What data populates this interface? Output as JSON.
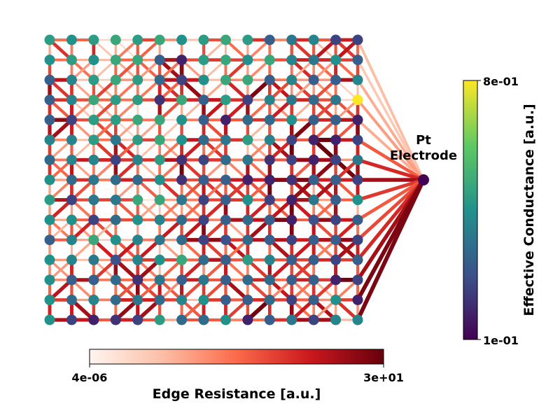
{
  "chart_data": {
    "type": "network-graph",
    "electrode_label": "Pt\nElectrode",
    "grid": {
      "rows": 15,
      "cols": 15
    },
    "edge_colorbar": {
      "label": "Edge Resistance [a.u.]",
      "min_label": "4e-06",
      "max_label": "3e+01",
      "colormap": "Reds"
    },
    "node_colorbar": {
      "label": "Effective Conductance [a.u.]",
      "min_label": "1e-01",
      "max_label": "8e-01",
      "colormap": "viridis"
    },
    "electrode_node_level": 0.0,
    "electrode_link_levels": [
      0.25,
      0.2,
      0.3,
      0.35,
      0.3,
      0.55,
      0.7,
      0.85,
      0.65,
      0.55,
      0.6,
      0.7,
      0.85,
      0.95,
      0.95
    ],
    "node_levels": [
      [
        0.55,
        0.5,
        0.55,
        0.6,
        0.55,
        0.6,
        0.5,
        0.55,
        0.6,
        0.55,
        0.3,
        0.4,
        0.45,
        0.2,
        0.2
      ],
      [
        0.5,
        0.55,
        0.5,
        0.6,
        0.6,
        0.3,
        0.1,
        0.55,
        0.6,
        0.5,
        0.6,
        0.45,
        0.4,
        0.5,
        0.3
      ],
      [
        0.3,
        0.45,
        0.55,
        0.6,
        0.55,
        0.35,
        0.2,
        0.5,
        0.6,
        0.6,
        0.3,
        0.45,
        0.3,
        0.3,
        0.45
      ],
      [
        0.3,
        0.45,
        0.6,
        0.55,
        0.55,
        0.15,
        0.6,
        0.3,
        0.55,
        0.2,
        0.45,
        0.4,
        0.35,
        0.4,
        1.0
      ],
      [
        0.3,
        0.2,
        0.55,
        0.55,
        0.6,
        0.6,
        0.5,
        0.3,
        0.1,
        0.35,
        0.35,
        0.5,
        0.3,
        0.3,
        0.1
      ],
      [
        0.45,
        0.45,
        0.55,
        0.4,
        0.55,
        0.6,
        0.5,
        0.35,
        0.4,
        0.55,
        0.45,
        0.2,
        0.1,
        0.1,
        0.2
      ],
      [
        0.35,
        0.45,
        0.45,
        0.2,
        0.45,
        0.55,
        0.15,
        0.2,
        0.35,
        0.4,
        0.15,
        0.2,
        0.1,
        0.2,
        0.4
      ],
      [
        0.5,
        0.35,
        0.4,
        0.35,
        0.35,
        0.5,
        0.15,
        0.3,
        0.3,
        0.1,
        0.1,
        0.15,
        0.3,
        0.3,
        0.2
      ],
      [
        0.55,
        0.2,
        0.4,
        0.4,
        0.6,
        0.6,
        0.4,
        0.2,
        0.3,
        0.5,
        0.2,
        0.1,
        0.4,
        0.3,
        0.5
      ],
      [
        0.5,
        0.5,
        0.2,
        0.35,
        0.5,
        0.45,
        0.35,
        0.2,
        0.3,
        0.35,
        0.3,
        0.1,
        0.25,
        0.2,
        0.3
      ],
      [
        0.3,
        0.45,
        0.6,
        0.5,
        0.45,
        0.4,
        0.35,
        0.2,
        0.25,
        0.35,
        0.3,
        0.2,
        0.3,
        0.3,
        0.2
      ],
      [
        0.5,
        0.45,
        0.4,
        0.25,
        0.45,
        0.5,
        0.6,
        0.35,
        0.3,
        0.55,
        0.45,
        0.3,
        0.3,
        0.2,
        0.3
      ],
      [
        0.5,
        0.3,
        0.3,
        0.35,
        0.15,
        0.4,
        0.3,
        0.4,
        0.3,
        0.35,
        0.35,
        0.3,
        0.3,
        0.1,
        0.2
      ],
      [
        0.5,
        0.35,
        0.45,
        0.35,
        0.4,
        0.35,
        0.45,
        0.5,
        0.3,
        0.3,
        0.35,
        0.2,
        0.3,
        0.5,
        0.1
      ],
      [
        0.5,
        0.2,
        0.1,
        0.15,
        0.2,
        0.55,
        0.35,
        0.35,
        0.5,
        0.1,
        0.3,
        0.4,
        0.2,
        0.45,
        0.45
      ]
    ]
  }
}
